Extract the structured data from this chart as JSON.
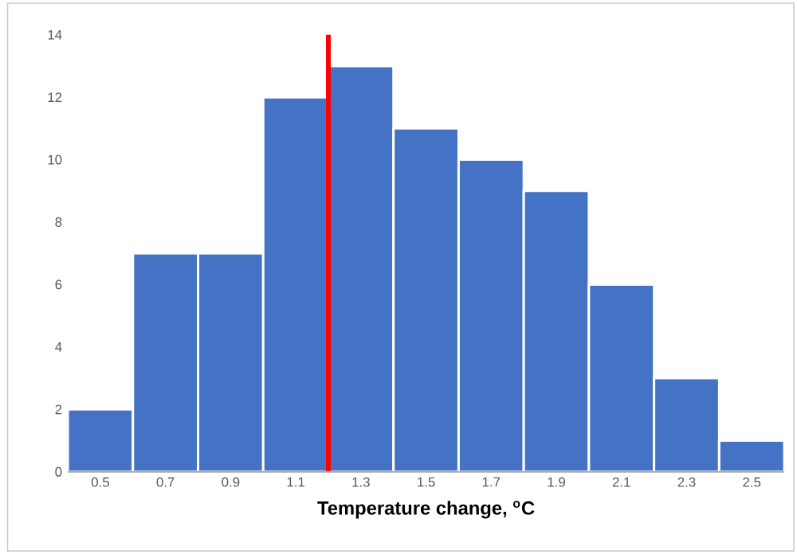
{
  "chart_data": {
    "type": "histogram",
    "xlabel": "Temperature change, $^{o}$C",
    "bins": [
      0.4,
      0.6,
      0.8,
      1.0,
      1.2,
      1.4,
      1.6,
      1.8,
      2.0,
      2.2,
      2.4,
      2.6
    ],
    "values": [
      2,
      7,
      7,
      12,
      13,
      11,
      10,
      9,
      6,
      3,
      1
    ],
    "color": "#4472c4",
    "xlim": [
      0.4,
      2.6
    ],
    "xticks": [
      0.5,
      0.7,
      0.9,
      1.1,
      1.3,
      1.5,
      1.7,
      1.9,
      2.1,
      2.3,
      2.5
    ],
    "ylim": [
      0,
      14
    ],
    "yticks": [
      0,
      2,
      4,
      6,
      8,
      10,
      12,
      14
    ],
    "ref_lines": [
      {
        "axis": "x",
        "value": 1.2,
        "color": "#ff0000"
      }
    ]
  }
}
